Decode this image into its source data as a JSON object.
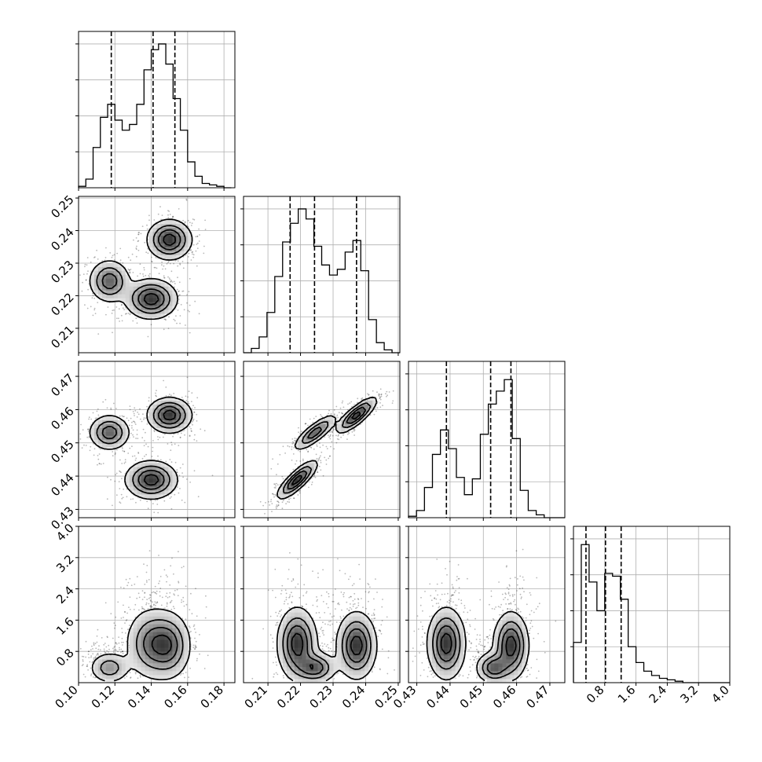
{
  "chart_data": {
    "type": "corner-plot",
    "parameters": [
      {
        "name": "",
        "range": [
          0.1,
          0.186
        ],
        "ticks": [
          0.1,
          0.12,
          0.14,
          0.16,
          0.18
        ],
        "tick_labels": [
          "0.10",
          "0.12",
          "0.14",
          "0.16",
          "0.18"
        ]
      },
      {
        "name": "",
        "range": [
          0.2025,
          0.2505
        ],
        "ticks": [
          0.21,
          0.22,
          0.23,
          0.24,
          0.25
        ],
        "tick_labels": [
          "0.21",
          "0.22",
          "0.23",
          "0.24",
          "0.25"
        ]
      },
      {
        "name": "",
        "range": [
          0.4275,
          0.4745
        ],
        "ticks": [
          0.43,
          0.44,
          0.45,
          0.46,
          0.47
        ],
        "tick_labels": [
          "0.43",
          "0.44",
          "0.45",
          "0.46",
          "0.47"
        ]
      },
      {
        "name": "",
        "range": [
          0.0,
          4.0
        ],
        "ticks": [
          0.8,
          1.6,
          2.4,
          3.2,
          4.0
        ],
        "tick_labels": [
          "0.8",
          "1.6",
          "2.4",
          "3.2",
          "4.0"
        ]
      }
    ],
    "quantiles": [
      [
        0.118,
        0.141,
        0.153
      ],
      [
        0.2168,
        0.2243,
        0.2372
      ],
      [
        0.4389,
        0.4522,
        0.4583
      ],
      [
        0.32,
        0.82,
        1.22
      ]
    ],
    "histograms": [
      {
        "edges": [
          0.1,
          0.104,
          0.108,
          0.112,
          0.116,
          0.12,
          0.124,
          0.128,
          0.132,
          0.136,
          0.14,
          0.144,
          0.148,
          0.152,
          0.156,
          0.16,
          0.164,
          0.168,
          0.172,
          0.176,
          0.18,
          0.184
        ],
        "counts": [
          0.01,
          0.06,
          0.28,
          0.49,
          0.58,
          0.47,
          0.4,
          0.44,
          0.58,
          0.82,
          0.96,
          1.0,
          0.86,
          0.62,
          0.4,
          0.18,
          0.08,
          0.03,
          0.02,
          0.01,
          0.0
        ]
      },
      {
        "edges": [
          0.2025,
          0.2049,
          0.2073,
          0.2097,
          0.2121,
          0.2145,
          0.2169,
          0.2193,
          0.2217,
          0.2241,
          0.2265,
          0.2289,
          0.2313,
          0.2337,
          0.2361,
          0.2385,
          0.2409,
          0.2433,
          0.2457,
          0.2481,
          0.2505
        ],
        "counts": [
          0.0,
          0.03,
          0.11,
          0.28,
          0.53,
          0.77,
          0.9,
          1.0,
          0.93,
          0.74,
          0.61,
          0.54,
          0.58,
          0.7,
          0.78,
          0.57,
          0.23,
          0.07,
          0.02,
          0.0
        ]
      },
      {
        "edges": [
          0.4275,
          0.4299,
          0.4323,
          0.4347,
          0.4371,
          0.4395,
          0.4419,
          0.4443,
          0.4467,
          0.4491,
          0.4515,
          0.4539,
          0.4563,
          0.4587,
          0.4611,
          0.4635,
          0.4659,
          0.4683,
          0.4707,
          0.4731,
          0.4745
        ],
        "counts": [
          0.01,
          0.05,
          0.21,
          0.44,
          0.61,
          0.48,
          0.28,
          0.16,
          0.27,
          0.58,
          0.79,
          0.88,
          0.96,
          0.55,
          0.19,
          0.05,
          0.02,
          0.0,
          0.0,
          0.0
        ]
      },
      {
        "edges": [
          0.0,
          0.2,
          0.4,
          0.6,
          0.8,
          1.0,
          1.2,
          1.4,
          1.6,
          1.8,
          2.0,
          2.2,
          2.4,
          2.6,
          2.8,
          3.0,
          3.2,
          3.4,
          3.6,
          3.8,
          4.0
        ],
        "counts": [
          0.28,
          0.96,
          0.7,
          0.5,
          0.76,
          0.74,
          0.58,
          0.25,
          0.14,
          0.08,
          0.05,
          0.03,
          0.02,
          0.01,
          0.0,
          0.0,
          0.0,
          0.0,
          0.0,
          0.0
        ]
      }
    ],
    "mode_clusters": [
      {
        "center": [
          0.117,
          0.2245,
          0.4531,
          0.38
        ],
        "spread": [
          0.0055,
          0.0032,
          0.0026,
          0.2
        ],
        "weight": 0.28
      },
      {
        "center": [
          0.14,
          0.219,
          0.4389,
          1.0
        ],
        "spread": [
          0.007,
          0.003,
          0.0028,
          0.45
        ],
        "weight": 0.36
      },
      {
        "center": [
          0.15,
          0.2372,
          0.4583,
          0.95
        ],
        "spread": [
          0.006,
          0.003,
          0.0026,
          0.42
        ],
        "weight": 0.36
      }
    ],
    "grid": true,
    "legend": "none",
    "title": "",
    "colors": {
      "line": "#000000",
      "grid": "#b0b0b0",
      "points": "#000000",
      "density": "#000000"
    }
  }
}
